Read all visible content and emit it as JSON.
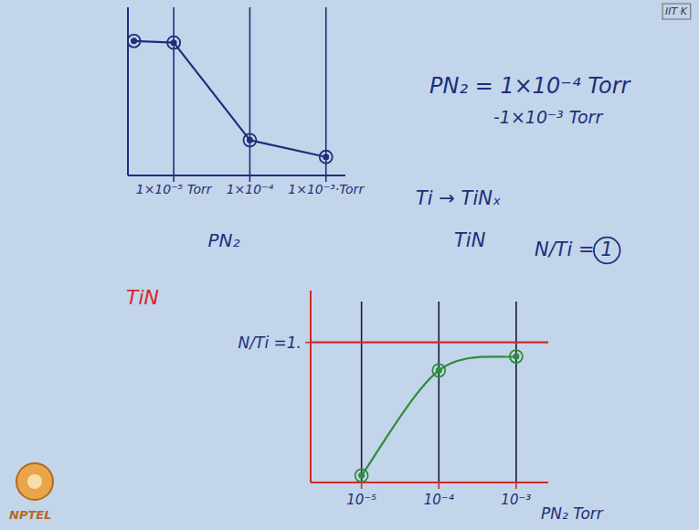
{
  "chart_data": [
    {
      "type": "line",
      "x_label": "PN₂",
      "log": "x",
      "xlim": [
        2.5e-06,
        0.0018
      ],
      "ylim": [
        0,
        1
      ],
      "xticks": [
        {
          "value": 1e-05,
          "label": "1×10⁻⁵ Torr"
        },
        {
          "value": 0.0001,
          "label": "1×10⁻⁴"
        },
        {
          "value": 0.001,
          "label": "1×10⁻³·Torr"
        }
      ],
      "yticks": [],
      "tick_labels": "x",
      "grid": true,
      "x": [
        3e-06,
        1e-05,
        0.0001,
        0.001
      ],
      "series": [
        {
          "color": "#1d2f7a",
          "marker": "circle",
          "line_style": "solid",
          "values": [
            0.8,
            0.79,
            0.21,
            0.11
          ]
        }
      ]
    },
    {
      "type": "line",
      "x_label": "PN₂ Torr",
      "log": "x",
      "xlim": [
        2.2e-06,
        0.0026
      ],
      "ylim": [
        0,
        1.37
      ],
      "xticks": [
        {
          "value": 1e-05,
          "label": "10⁻⁵"
        },
        {
          "value": 0.0001,
          "label": "10⁻⁴"
        },
        {
          "value": 0.001,
          "label": "10⁻³"
        }
      ],
      "yticks": [
        {
          "value": 1,
          "label": "N/Ti =1."
        }
      ],
      "tick_labels": true,
      "grid": true,
      "x": [
        1e-05,
        0.0001,
        0.001
      ],
      "series": [
        {
          "color": "#2e8b3a",
          "marker": "circle",
          "line_style": "curved",
          "values": [
            0.05,
            0.8,
            0.9
          ]
        }
      ],
      "reference_line": {
        "value": 1,
        "color": "#d62828"
      }
    }
  ],
  "annotations": [
    {
      "text": "PN₂ = 1×10⁻⁴ Torr",
      "color": "#1d2f7a"
    },
    {
      "text": "-1×10⁻³ Torr",
      "color": "#1d2f7a"
    },
    {
      "text": "Ti → TiNₓ",
      "color": "#1d2f7a"
    },
    {
      "text": "TiN",
      "color": "#1d2f7a"
    },
    {
      "text": "N/Ti = 1",
      "color": "#1d2f7a"
    },
    {
      "text": "TiN",
      "color": "#d62828"
    }
  ],
  "watermarks": [
    "NPTEL",
    "IIT K"
  ]
}
